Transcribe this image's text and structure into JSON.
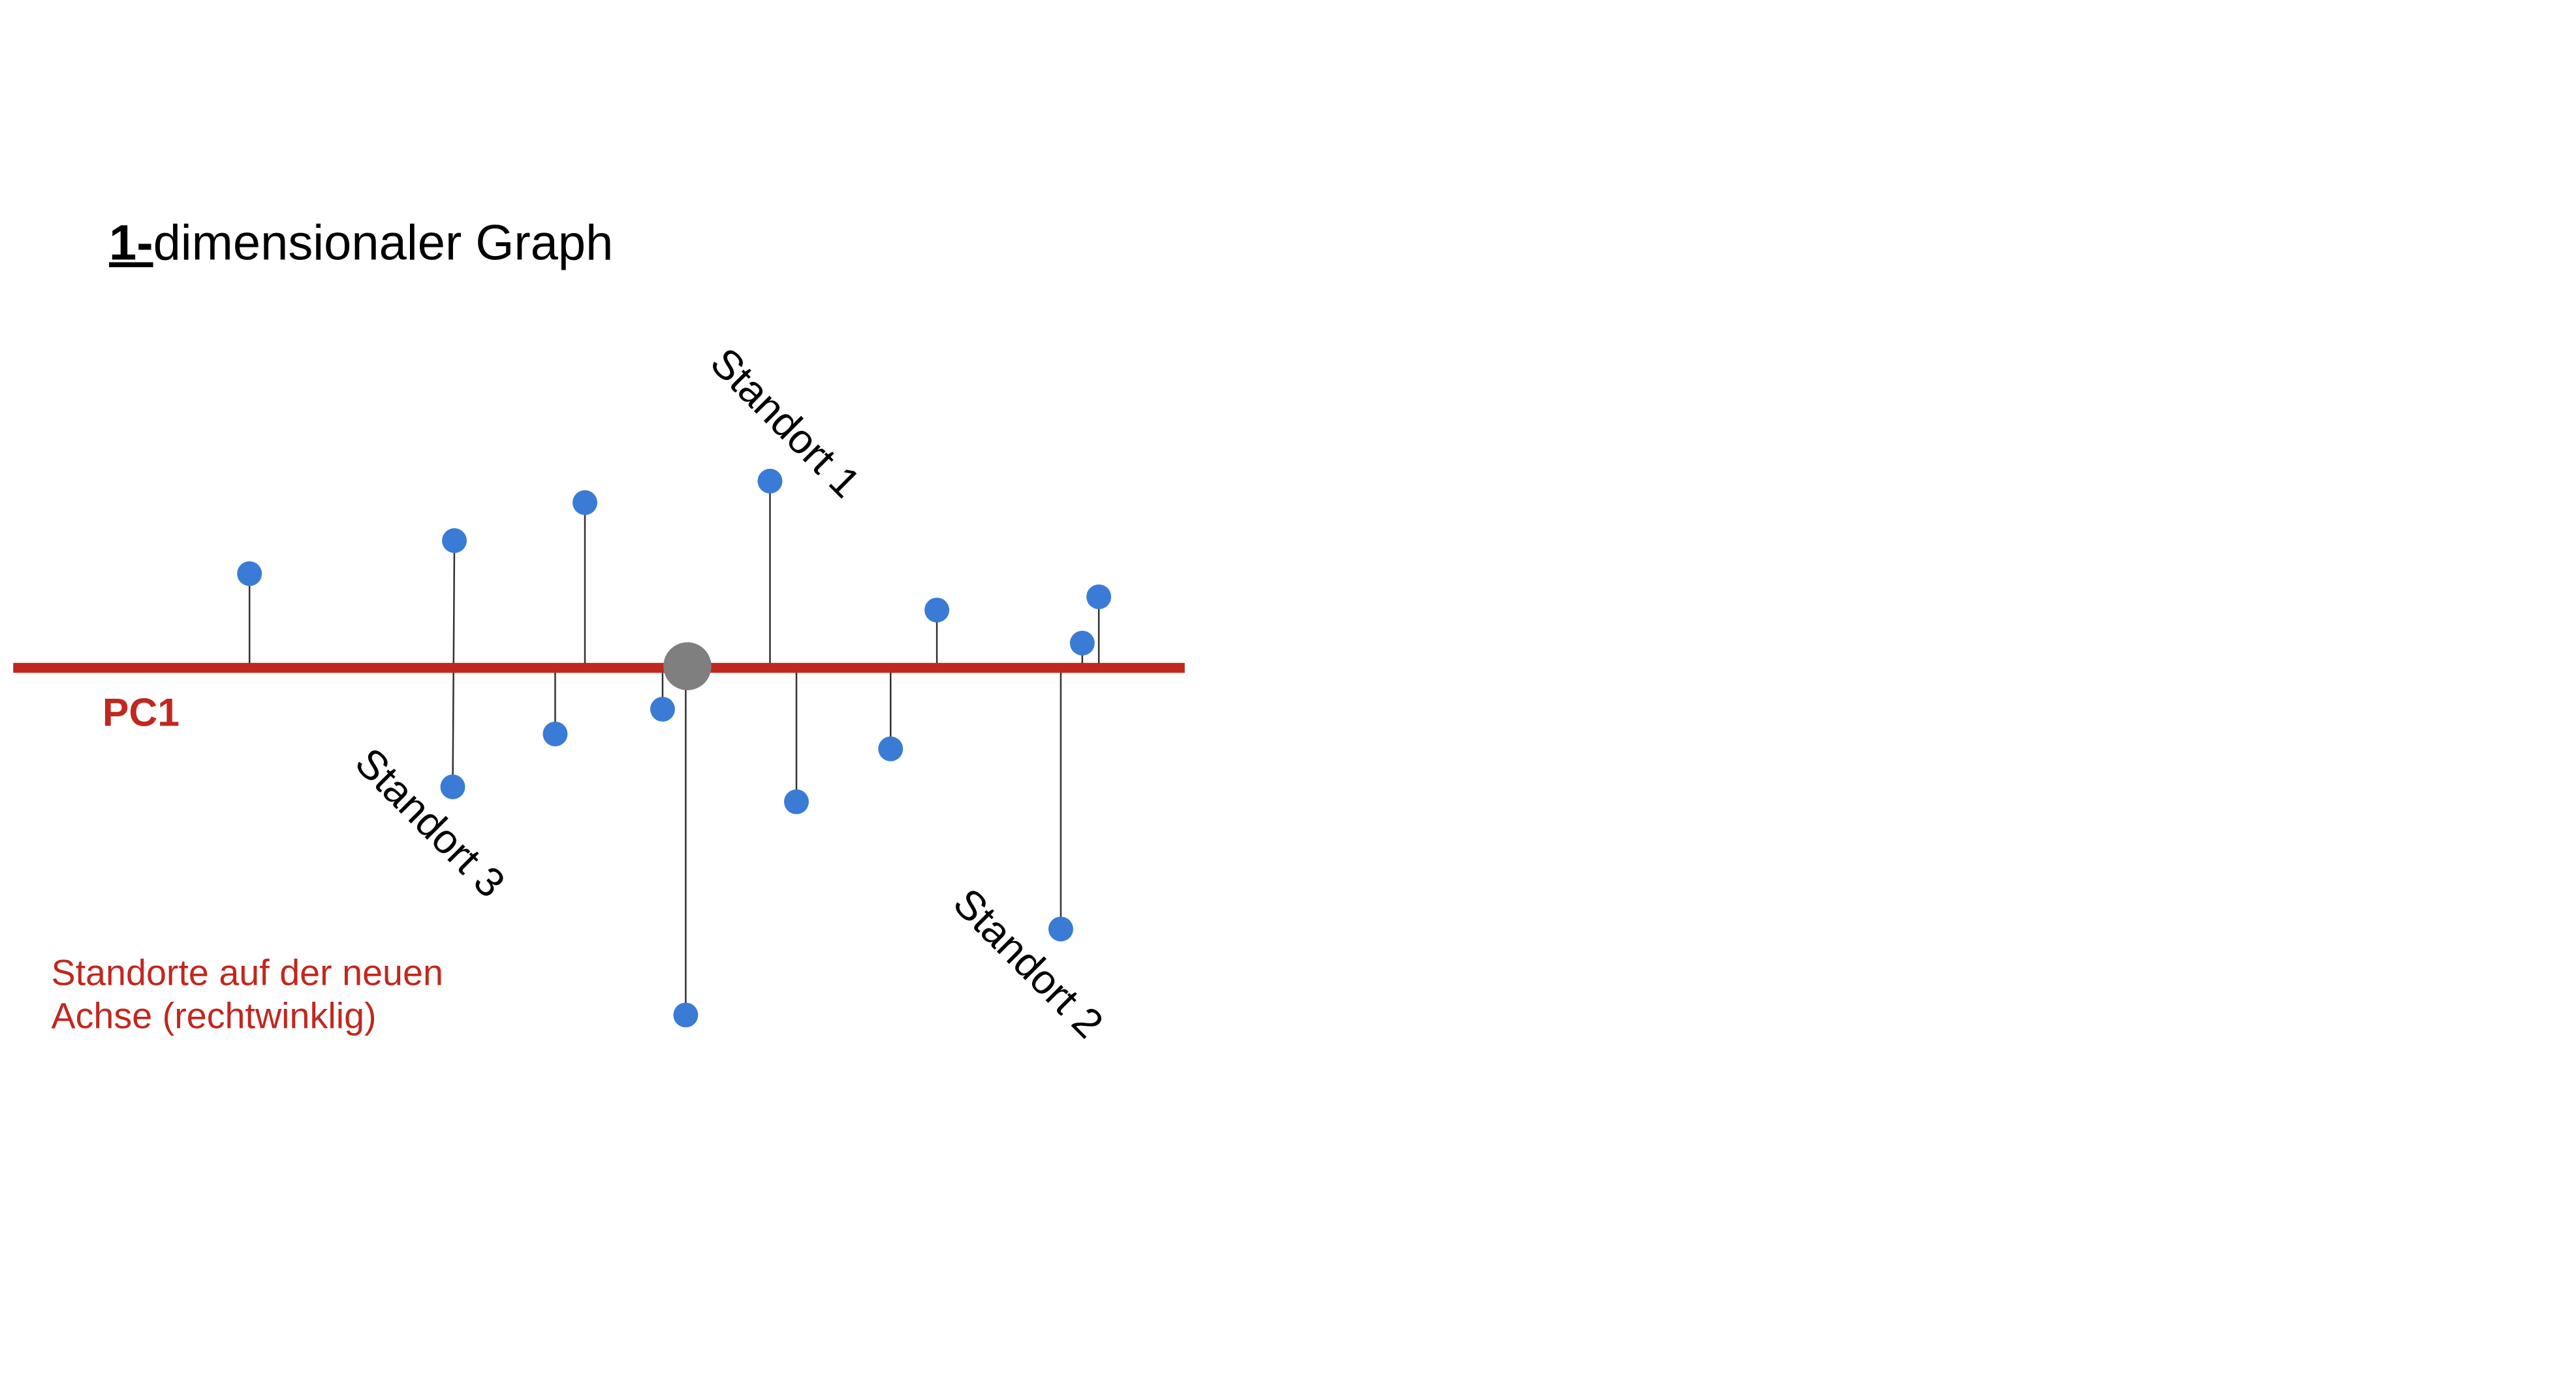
{
  "title": {
    "number": "1-",
    "text": "dimensionaler Graph"
  },
  "axis_label": "PC1",
  "labels": [
    "Standort 1",
    "Standort 2",
    "Standort 3"
  ],
  "note": [
    "Standorte auf der neuen",
    "Achse (rechtwinklig)"
  ]
}
